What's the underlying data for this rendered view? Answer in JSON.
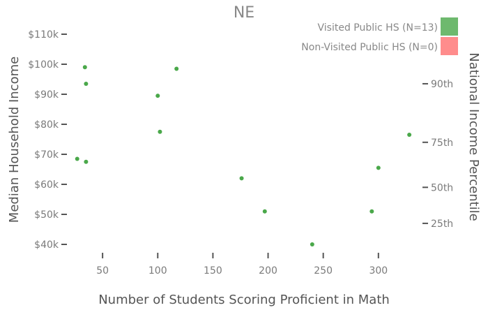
{
  "chart_data": {
    "type": "scatter",
    "title": "NE",
    "xlabel": "Number of Students Scoring Proficient in Math",
    "ylabel": "Median Household Income",
    "y2label": "National Income Percentile",
    "xlim": [
      0,
      340
    ],
    "ylim": [
      36000,
      112000
    ],
    "x_ticks": [
      50,
      100,
      150,
      200,
      250,
      300
    ],
    "x_tick_labels": [
      "50",
      "100",
      "150",
      "200",
      "250",
      "300"
    ],
    "y_ticks": [
      40000,
      50000,
      60000,
      70000,
      80000,
      90000,
      100000,
      110000
    ],
    "y_tick_labels": [
      "$40k",
      "$50k",
      "$60k",
      "$70k",
      "$80k",
      "$90k",
      "$100k",
      "$110k"
    ],
    "y2_ticks": [
      {
        "label": "25th",
        "y": 47000
      },
      {
        "label": "50th",
        "y": 59000
      },
      {
        "label": "75th",
        "y": 74000
      },
      {
        "label": "90th",
        "y": 93500
      }
    ],
    "grid": false,
    "legend_position": "top-right",
    "colors": {
      "visited": "#4aa84a",
      "non_visited": "#ff8080"
    },
    "series": [
      {
        "name": "Visited Public HS (N=13)",
        "color": "#4aa84a",
        "points": [
          {
            "x": 34,
            "y": 99000
          },
          {
            "x": 35,
            "y": 93500
          },
          {
            "x": 117,
            "y": 98500
          },
          {
            "x": 100,
            "y": 89500
          },
          {
            "x": 102,
            "y": 77500
          },
          {
            "x": 27,
            "y": 68500
          },
          {
            "x": 35,
            "y": 67500
          },
          {
            "x": 176,
            "y": 62000
          },
          {
            "x": 197,
            "y": 51000
          },
          {
            "x": 240,
            "y": 40000
          },
          {
            "x": 294,
            "y": 51000
          },
          {
            "x": 300,
            "y": 65500
          },
          {
            "x": 328,
            "y": 76500
          }
        ]
      },
      {
        "name": "Non-Visited Public HS (N=0)",
        "color": "#ff8080",
        "points": []
      }
    ]
  }
}
